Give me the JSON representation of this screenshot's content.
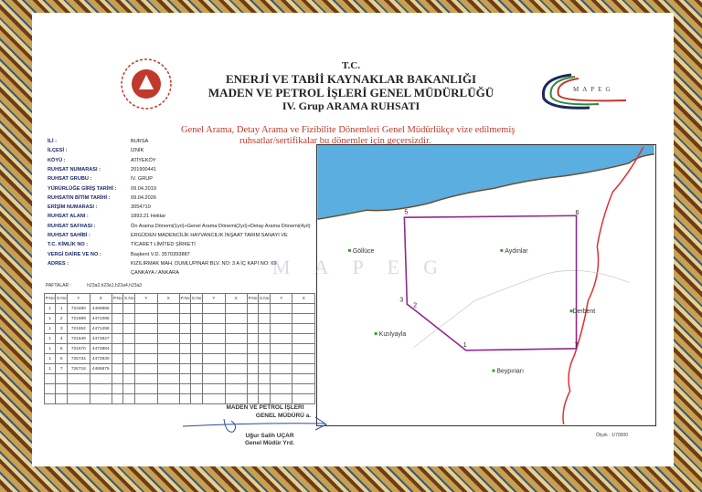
{
  "header": {
    "line1": "T.C.",
    "line2": "ENERJİ VE TABİİ KAYNAKLAR BAKANLIĞI",
    "line3": "MADEN VE PETROL İŞLERİ GENEL MÜDÜRLÜĞÜ",
    "line4": "IV. Grup ARAMA RUHSATI"
  },
  "logo": {
    "text": "MAPEG",
    "watermark": "MAPEG"
  },
  "warning": {
    "line1": "Genel Arama, Detay Arama ve Fizibilite Dönemleri Genel Müdürlükçe vize edilmemiş",
    "line2": "ruhsatlar/sertifikalar bu dönemler için geçersizdir."
  },
  "info": [
    {
      "label": "İLİ :",
      "value": "BURSA"
    },
    {
      "label": "İLÇESİ :",
      "value": "İZNİK"
    },
    {
      "label": "KÖYÜ :",
      "value": "ATİYEKÖY"
    },
    {
      "label": "RUHSAT NUMARASI :",
      "value": "201900441"
    },
    {
      "label": "RUHSAT GRUBU :",
      "value": "IV. GRUP"
    },
    {
      "label": "YÜRÜRLÜĞE GİRİŞ TARİHİ :",
      "value": "09.04.2019"
    },
    {
      "label": "RUHSATIN BİTİM TARİHİ :",
      "value": "09.04.2026"
    },
    {
      "label": "ERİŞİM NUMARASI :",
      "value": "3054710"
    },
    {
      "label": "RUHSAT ALANI :",
      "value": "1893.21 Hektar"
    },
    {
      "label": "RUHSAT SAFHASI :",
      "value": "Ön Arama Dönemi(1yıl)+Genel Arama Dönemi(2yıl)+Detay Arama Dönemi(4yıl)"
    },
    {
      "label": "RUHSAT SAHİBİ :",
      "value": "ERGÜDEN MADENCİLİK HAYVANCILIK İNŞAAT TARIM SANAYI VE"
    },
    {
      "label": "T.C. KİMLİK NO :",
      "value": "TİCARET LİMİTED ŞİRKETİ"
    },
    {
      "label": "VERGİ DAİRE VE NO :",
      "value": "Başkent V.D. 3570393887"
    },
    {
      "label": "ADRES :",
      "value": "KIZILIRMAK MAH. DUMLUPINAR BLV. NO: 3 A İÇ KAPI NO: 69"
    },
    {
      "label": "",
      "value": "ÇANKAYA / ANKARA"
    }
  ],
  "paftalar": {
    "label": "PAFTALAR :",
    "value": "h23a2,h23a1,h23a4,h23a3"
  },
  "table": {
    "headers": [
      "P.No",
      "S.No",
      "Y",
      "X"
    ],
    "rows": [
      [
        "1",
        "1",
        "723480",
        "4469865"
      ],
      [
        "1",
        "2",
        "721869",
        "4471085"
      ],
      [
        "1",
        "3",
        "721652",
        "4471258"
      ],
      [
        "1",
        "4",
        "721649",
        "4473827"
      ],
      [
        "1",
        "5",
        "721670",
        "4473884"
      ],
      [
        "1",
        "6",
        "726734",
        "4473930"
      ],
      [
        "1",
        "7",
        "726718",
        "4469875"
      ]
    ]
  },
  "map": {
    "points": [
      "1",
      "2",
      "3",
      "5",
      "6",
      "7"
    ],
    "places": [
      "Göllüce",
      "Aydınlar",
      "Derbent",
      "Kızılyayla",
      "Beypınarı"
    ],
    "scale": "Ölçek : 1/70000",
    "colors": {
      "sea": "#5aaee0",
      "polygon": "#8e2a8e",
      "boundary": "#e03030"
    }
  },
  "signature": {
    "title1": "MADEN VE PETROL İŞLERİ",
    "title2": "GENEL MÜDÜRÜ a.",
    "name": "Uğur Salih UÇAR",
    "role": "Genel Müdür Yrd."
  }
}
